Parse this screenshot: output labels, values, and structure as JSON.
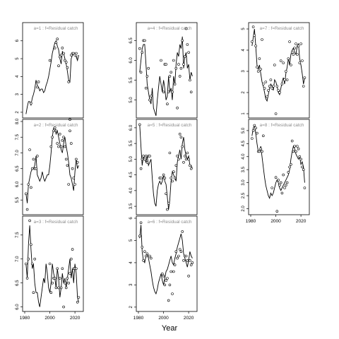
{
  "figure": {
    "xlabel": "Year"
  },
  "chart_data": [
    {
      "type": "line",
      "title": "a=1  :  f=Residual catch",
      "xlim": [
        1980,
        2025
      ],
      "ylim": [
        1.8,
        6.9
      ],
      "yticks": [
        2,
        3,
        4,
        5,
        6
      ],
      "show_xticks": false,
      "x": [
        1981,
        1982,
        1983,
        1984,
        1985,
        1986,
        1987,
        1988,
        1989,
        1990,
        1991,
        1992,
        1993,
        1994,
        1995,
        1996,
        1997,
        1998,
        1999,
        2000,
        2001,
        2002,
        2003,
        2004,
        2005,
        2006,
        2007,
        2008,
        2009,
        2010,
        2011,
        2012,
        2013,
        2014,
        2015,
        2016,
        2017,
        2018,
        2019,
        2020,
        2021,
        2022,
        2023
      ],
      "line": [
        1.9,
        2.3,
        2.6,
        2.6,
        2.4,
        2.8,
        3.0,
        3.3,
        3.8,
        3.5,
        3.4,
        3.2,
        3.3,
        3.3,
        3.1,
        3.2,
        3.5,
        3.7,
        4.0,
        4.4,
        4.8,
        5.3,
        5.6,
        5.9,
        6.0,
        5.7,
        5.5,
        5.0,
        4.7,
        5.4,
        5.3,
        5.0,
        4.7,
        4.3,
        3.8,
        3.7,
        5.0,
        5.2,
        5.3,
        5.2,
        5.1,
        4.9,
        5.2
      ],
      "points_x": [
        1985,
        1990,
        1991,
        2000,
        2004,
        2005,
        2006,
        2007,
        2008,
        2009,
        2010,
        2011,
        2012,
        2013,
        2014,
        2015,
        2016,
        2017,
        2018,
        2019,
        2020,
        2021,
        2022
      ],
      "points_y": [
        2.5,
        3.4,
        3.7,
        4.9,
        5.6,
        5.9,
        6.1,
        4.6,
        5.1,
        5.2,
        5.6,
        5.3,
        4.9,
        4.8,
        4.5,
        3.7,
        1.6,
        5.2,
        5.3,
        5.3,
        5.2,
        5.3,
        5.1
      ]
    },
    {
      "type": "line",
      "title": "a=2  :  f=Residual catch",
      "xlim": [
        1980,
        2025
      ],
      "ylim": [
        5.1,
        8.0
      ],
      "yticks": [
        5.5,
        6.0,
        6.5,
        7.0,
        7.5,
        8.0
      ],
      "show_xticks": false,
      "x": [
        1981,
        1982,
        1983,
        1984,
        1985,
        1986,
        1987,
        1988,
        1989,
        1990,
        1991,
        1992,
        1993,
        1994,
        1995,
        1996,
        1997,
        1998,
        1999,
        2000,
        2001,
        2002,
        2003,
        2004,
        2005,
        2006,
        2007,
        2008,
        2009,
        2010,
        2011,
        2012,
        2013,
        2014,
        2015,
        2016,
        2017,
        2018,
        2019,
        2020,
        2021,
        2022,
        2023
      ],
      "line": [
        5.7,
        5.4,
        6.0,
        6.2,
        6.4,
        6.5,
        6.5,
        6.6,
        6.9,
        6.3,
        6.2,
        6.1,
        6.2,
        6.4,
        6.2,
        6.1,
        6.2,
        6.3,
        6.3,
        6.6,
        7.0,
        7.5,
        7.8,
        7.8,
        7.6,
        7.7,
        7.5,
        7.3,
        7.1,
        7.0,
        7.3,
        7.5,
        7.2,
        7.0,
        6.7,
        6.3,
        6.2,
        6.0,
        5.8,
        6.4,
        6.8,
        6.5,
        6.6
      ],
      "points_x": [
        1981,
        1982,
        1983,
        1984,
        1985,
        1986,
        1987,
        1988,
        1989,
        1990,
        2001,
        2002,
        2003,
        2004,
        2005,
        2006,
        2007,
        2008,
        2009,
        2010,
        2011,
        2012,
        2013,
        2014,
        2015,
        2016,
        2017,
        2018,
        2019,
        2020,
        2021,
        2022
      ],
      "points_y": [
        5.7,
        5.2,
        6.0,
        7.1,
        5.9,
        6.5,
        6.8,
        6.5,
        6.5,
        6.9,
        7.2,
        7.5,
        7.7,
        7.8,
        7.7,
        7.3,
        7.2,
        7.6,
        7.2,
        7.4,
        7.5,
        7.2,
        6.8,
        6.6,
        6.0,
        7.7,
        7.3,
        6.5,
        6.2,
        6.0,
        6.8,
        6.7
      ]
    },
    {
      "type": "line",
      "title": "a=3  :  f=Residual catch",
      "xlim": [
        1980,
        2025
      ],
      "ylim": [
        5.95,
        7.85
      ],
      "yticks": [
        6.0,
        6.5,
        7.0,
        7.5
      ],
      "show_xticks": true,
      "x": [
        1981,
        1982,
        1983,
        1984,
        1985,
        1986,
        1987,
        1988,
        1989,
        1990,
        1991,
        1992,
        1993,
        1994,
        1995,
        1996,
        1997,
        1998,
        1999,
        2000,
        2001,
        2002,
        2003,
        2004,
        2005,
        2006,
        2007,
        2008,
        2009,
        2010,
        2011,
        2012,
        2013,
        2014,
        2015,
        2016,
        2017,
        2018,
        2019,
        2020,
        2021,
        2022,
        2023
      ],
      "line": [
        6.9,
        6.6,
        7.3,
        7.7,
        7.2,
        6.8,
        6.9,
        6.5,
        6.3,
        6.3,
        6.1,
        6.0,
        6.2,
        6.4,
        6.6,
        6.5,
        6.9,
        6.7,
        6.4,
        6.3,
        6.5,
        6.9,
        6.7,
        6.6,
        6.4,
        6.8,
        6.6,
        6.2,
        6.4,
        6.7,
        6.5,
        6.6,
        6.4,
        6.6,
        6.8,
        7.0,
        6.6,
        6.8,
        6.5,
        6.9,
        6.7,
        6.2,
        6.1
      ],
      "points_x": [
        1981,
        1982,
        1983,
        1984,
        1985,
        1986,
        1987,
        1988,
        2000,
        2001,
        2002,
        2003,
        2004,
        2005,
        2006,
        2007,
        2008,
        2009,
        2010,
        2011,
        2012,
        2013,
        2014,
        2015,
        2016,
        2017,
        2018,
        2019,
        2020,
        2021,
        2022,
        2023
      ],
      "points_y": [
        6.9,
        6.6,
        7.0,
        7.8,
        7.3,
        6.9,
        6.3,
        7.0,
        6.9,
        6.3,
        6.5,
        6.6,
        6.6,
        6.4,
        6.8,
        6.4,
        6.6,
        6.4,
        6.8,
        6.0,
        6.5,
        6.4,
        6.6,
        6.5,
        6.7,
        7.0,
        7.2,
        6.8,
        6.8,
        6.8,
        6.1,
        6.2
      ]
    },
    {
      "type": "line",
      "title": "a=4  :  f=Residual catch",
      "xlim": [
        1980,
        2025
      ],
      "ylim": [
        4.6,
        6.9
      ],
      "yticks": [
        5.0,
        5.5,
        6.0,
        6.5
      ],
      "show_xticks": false,
      "x": [
        1981,
        1982,
        1983,
        1984,
        1985,
        1986,
        1987,
        1988,
        1989,
        1990,
        1991,
        1992,
        1993,
        1994,
        1995,
        1996,
        1997,
        1998,
        1999,
        2000,
        2001,
        2002,
        2003,
        2004,
        2005,
        2006,
        2007,
        2008,
        2009,
        2010,
        2011,
        2012,
        2013,
        2014,
        2015,
        2016,
        2017,
        2018,
        2019,
        2020,
        2021,
        2022,
        2023
      ],
      "line": [
        5.7,
        6.0,
        6.3,
        6.4,
        6.4,
        5.9,
        5.4,
        5.2,
        5.0,
        4.9,
        5.3,
        4.8,
        4.7,
        4.6,
        5.0,
        5.3,
        5.6,
        5.4,
        5.2,
        5.5,
        5.3,
        5.0,
        5.1,
        5.6,
        5.2,
        5.3,
        5.0,
        5.6,
        5.4,
        5.9,
        6.2,
        6.1,
        6.4,
        6.3,
        6.6,
        5.8,
        6.1,
        6.2,
        5.8,
        5.9,
        5.5,
        5.7,
        5.6
      ],
      "points_x": [
        1981,
        1982,
        1983,
        1984,
        1985,
        1986,
        1987,
        1988,
        1989,
        1990,
        1998,
        2000,
        2001,
        2002,
        2003,
        2004,
        2005,
        2006,
        2007,
        2008,
        2009,
        2010,
        2011,
        2012,
        2013,
        2014,
        2015,
        2016,
        2017,
        2018,
        2019,
        2020,
        2021,
        2022
      ],
      "points_y": [
        6.3,
        5.7,
        6.2,
        6.5,
        6.5,
        5.3,
        5.6,
        5.8,
        5.0,
        5.1,
        6.0,
        5.2,
        5.9,
        5.9,
        4.9,
        5.2,
        5.6,
        5.7,
        5.2,
        6.0,
        5.4,
        5.8,
        4.8,
        5.9,
        5.6,
        5.8,
        6.5,
        5.9,
        6.1,
        6.8,
        6.4,
        6.2,
        5.5,
        5.2
      ]
    },
    {
      "type": "line",
      "title": "a=5  :  f=Residual catch",
      "xlim": [
        1980,
        2025
      ],
      "ylim": [
        3.3,
        6.2
      ],
      "yticks": [
        3.5,
        4.0,
        4.5,
        5.0,
        5.5,
        6.0
      ],
      "show_xticks": false,
      "x": [
        1981,
        1982,
        1983,
        1984,
        1985,
        1986,
        1987,
        1988,
        1989,
        1990,
        1991,
        1992,
        1993,
        1994,
        1995,
        1996,
        1997,
        1998,
        1999,
        2000,
        2001,
        2002,
        2003,
        2004,
        2005,
        2006,
        2007,
        2008,
        2009,
        2010,
        2011,
        2012,
        2013,
        2014,
        2015,
        2016,
        2017,
        2018,
        2019,
        2020,
        2021,
        2022,
        2023
      ],
      "line": [
        6.1,
        5.4,
        4.8,
        5.1,
        5.0,
        4.9,
        5.1,
        4.8,
        4.9,
        5.0,
        4.4,
        3.9,
        3.6,
        3.5,
        4.0,
        4.2,
        4.3,
        4.2,
        4.3,
        4.5,
        4.3,
        4.2,
        3.8,
        3.4,
        3.7,
        4.3,
        4.6,
        4.5,
        4.4,
        4.3,
        4.9,
        5.1,
        5.3,
        5.0,
        5.5,
        5.7,
        5.3,
        5.1,
        5.0,
        5.1,
        4.8,
        4.8,
        4.7
      ],
      "points_x": [
        1981,
        1982,
        1983,
        1984,
        1985,
        1986,
        1987,
        1988,
        1989,
        1997,
        1998,
        2000,
        2001,
        2002,
        2003,
        2004,
        2005,
        2006,
        2007,
        2008,
        2009,
        2010,
        2011,
        2012,
        2013,
        2014,
        2015,
        2016,
        2017,
        2018,
        2019,
        2020,
        2021,
        2022
      ],
      "points_y": [
        6.1,
        4.7,
        5.0,
        5.1,
        5.0,
        5.1,
        4.9,
        5.1,
        5.1,
        4.4,
        4.4,
        4.5,
        4.4,
        3.9,
        3.4,
        3.6,
        5.2,
        4.4,
        4.3,
        4.6,
        4.4,
        4.8,
        5.1,
        5.0,
        5.8,
        5.7,
        5.4,
        4.9,
        5.1,
        5.0,
        5.2,
        5.0,
        4.8,
        4.7
      ]
    },
    {
      "type": "line",
      "title": "a=6  :  f=Residual catch",
      "xlim": [
        1980,
        2025
      ],
      "ylim": [
        1.9,
        6.0
      ],
      "yticks": [
        2,
        3,
        4,
        5,
        6
      ],
      "show_xticks": true,
      "x": [
        1981,
        1982,
        1983,
        1984,
        1985,
        1986,
        1987,
        1988,
        1989,
        1990,
        1991,
        1992,
        1993,
        1994,
        1995,
        1996,
        1997,
        1998,
        1999,
        2000,
        2001,
        2002,
        2003,
        2004,
        2005,
        2006,
        2007,
        2008,
        2009,
        2010,
        2011,
        2012,
        2013,
        2014,
        2015,
        2016,
        2017,
        2018,
        2019,
        2020,
        2021,
        2022,
        2023
      ],
      "line": [
        5.1,
        5.7,
        4.5,
        4.1,
        4.0,
        4.3,
        4.4,
        4.2,
        3.9,
        3.6,
        3.2,
        2.9,
        2.7,
        2.6,
        2.8,
        3.1,
        3.3,
        3.5,
        3.2,
        3.0,
        3.3,
        3.6,
        3.7,
        3.9,
        4.1,
        4.3,
        4.0,
        3.9,
        4.2,
        4.4,
        4.7,
        4.9,
        5.1,
        5.3,
        5.0,
        4.4,
        4.2,
        4.0,
        3.8,
        4.1,
        4.5,
        4.3,
        4.2
      ],
      "points_x": [
        1981,
        1982,
        1983,
        1984,
        1985,
        1986,
        1987,
        1988,
        1989,
        1990,
        1999,
        2000,
        2001,
        2002,
        2003,
        2004,
        2005,
        2006,
        2007,
        2008,
        2009,
        2010,
        2011,
        2012,
        2013,
        2014,
        2015,
        2016,
        2017,
        2018,
        2019,
        2020,
        2021,
        2022,
        2023
      ],
      "points_y": [
        5.2,
        5.8,
        4.7,
        4.1,
        4.5,
        4.3,
        4.4,
        4.3,
        4.3,
        4.2,
        3.5,
        3.4,
        3.0,
        3.2,
        3.3,
        2.3,
        3.0,
        3.6,
        2.6,
        3.6,
        3.9,
        4.5,
        4.2,
        4.3,
        4.6,
        4.5,
        5.4,
        4.1,
        4.3,
        4.3,
        4.1,
        3.4,
        4.1,
        3.9,
        4.0
      ]
    },
    {
      "type": "line",
      "title": "a=7  :  f=Residual catch",
      "xlim": [
        1980,
        2025
      ],
      "ylim": [
        0.9,
        5.2
      ],
      "yticks": [
        1,
        2,
        3,
        4,
        5
      ],
      "show_xticks": false,
      "x": [
        1981,
        1982,
        1983,
        1984,
        1985,
        1986,
        1987,
        1988,
        1989,
        1990,
        1991,
        1992,
        1993,
        1994,
        1995,
        1996,
        1997,
        1998,
        1999,
        2000,
        2001,
        2002,
        2003,
        2004,
        2005,
        2006,
        2007,
        2008,
        2009,
        2010,
        2011,
        2012,
        2013,
        2014,
        2015,
        2016,
        2017,
        2018,
        2019,
        2020,
        2021,
        2022,
        2023
      ],
      "line": [
        4.2,
        4.6,
        5.0,
        4.2,
        3.3,
        3.1,
        3.3,
        2.9,
        2.5,
        2.3,
        2.0,
        1.7,
        1.6,
        1.9,
        2.2,
        2.4,
        2.3,
        2.1,
        2.6,
        2.5,
        2.3,
        2.0,
        1.9,
        2.2,
        2.5,
        2.7,
        2.4,
        2.9,
        3.2,
        3.6,
        3.3,
        3.8,
        4.0,
        4.1,
        3.9,
        3.8,
        4.2,
        4.3,
        3.6,
        3.3,
        2.9,
        2.4,
        2.7
      ],
      "points_x": [
        1981,
        1982,
        1983,
        1984,
        1985,
        1986,
        1987,
        1988,
        1989,
        1990,
        1991,
        1992,
        1993,
        1994,
        1995,
        1996,
        1997,
        1998,
        1999,
        2000,
        2001,
        2002,
        2003,
        2004,
        2005,
        2006,
        2007,
        2008,
        2009,
        2010,
        2011,
        2012,
        2013,
        2014,
        2015,
        2016,
        2017,
        2018,
        2019,
        2020,
        2021,
        2022,
        2023
      ],
      "points_y": [
        4.4,
        5.1,
        4.7,
        4.2,
        3.2,
        3.0,
        3.6,
        3.1,
        4.5,
        2.4,
        2.2,
        2.5,
        1.8,
        2.1,
        2.3,
        2.6,
        2.2,
        2.3,
        3.3,
        1.0,
        2.3,
        2.1,
        2.0,
        3.5,
        2.4,
        3.4,
        2.6,
        3.0,
        2.6,
        3.6,
        4.4,
        3.3,
        3.9,
        3.8,
        4.1,
        4.3,
        3.8,
        4.2,
        3.4,
        4.3,
        3.5,
        2.3,
        2.7
      ]
    },
    {
      "type": "line",
      "title": "a=8  :  f=Residual catch",
      "xlim": [
        1980,
        2025
      ],
      "ylim": [
        1.85,
        5.35
      ],
      "yticks": [
        2.0,
        2.5,
        3.0,
        3.5,
        4.0,
        4.5,
        5.0
      ],
      "show_xticks": true,
      "x": [
        1981,
        1982,
        1983,
        1984,
        1985,
        1986,
        1987,
        1988,
        1989,
        1990,
        1991,
        1992,
        1993,
        1994,
        1995,
        1996,
        1997,
        1998,
        1999,
        2000,
        2001,
        2002,
        2003,
        2004,
        2005,
        2006,
        2007,
        2008,
        2009,
        2010,
        2011,
        2012,
        2013,
        2014,
        2015,
        2016,
        2017,
        2018,
        2019,
        2020,
        2021,
        2022,
        2023
      ],
      "line": [
        4.8,
        5.1,
        5.2,
        4.9,
        4.5,
        4.2,
        4.2,
        4.4,
        4.0,
        3.6,
        3.2,
        2.9,
        2.7,
        2.5,
        2.4,
        2.6,
        2.5,
        2.6,
        2.8,
        3.0,
        3.1,
        3.0,
        2.8,
        2.7,
        2.8,
        2.9,
        3.0,
        3.1,
        3.2,
        3.3,
        3.5,
        3.9,
        4.2,
        4.4,
        4.3,
        4.1,
        4.0,
        3.9,
        4.0,
        3.7,
        3.8,
        3.6,
        3.0
      ],
      "points_x": [
        1981,
        1982,
        1983,
        1984,
        1985,
        1986,
        1987,
        1988,
        1989,
        1990,
        1997,
        2000,
        2001,
        2002,
        2003,
        2004,
        2005,
        2006,
        2007,
        2008,
        2009,
        2010,
        2011,
        2012,
        2013,
        2014,
        2015,
        2016,
        2017,
        2018,
        2019,
        2020,
        2021,
        2022,
        2023
      ],
      "points_y": [
        4.7,
        5.0,
        5.2,
        5.1,
        4.9,
        4.2,
        4.2,
        4.3,
        4.2,
        4.8,
        2.8,
        3.2,
        1.9,
        3.1,
        2.9,
        3.0,
        2.6,
        3.3,
        2.8,
        2.9,
        3.0,
        3.4,
        3.6,
        3.7,
        4.6,
        4.2,
        4.4,
        4.2,
        4.4,
        4.3,
        4.0,
        3.9,
        3.6,
        3.5,
        2.8
      ]
    }
  ]
}
